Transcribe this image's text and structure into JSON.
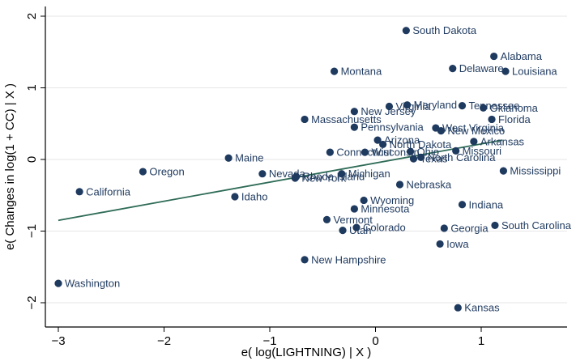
{
  "chart_data": {
    "type": "scatter",
    "xlabel": "e( log(LIGHTNING) | X )",
    "ylabel": "e( Changes in log(1 + CC) | X )",
    "xlim": [
      -3.05,
      1.3
    ],
    "ylim": [
      -2.1,
      2.1
    ],
    "x_ticks": [
      -3,
      -2,
      -1,
      0,
      1
    ],
    "y_ticks": [
      -2,
      -1,
      0,
      1,
      2
    ],
    "grid": true,
    "colors": {
      "points": "#1f3a5f",
      "fit_line": "#2e6b57"
    },
    "fit_line": {
      "x": [
        -3.0,
        1.2
      ],
      "y": [
        -0.85,
        0.27
      ]
    },
    "points": [
      {
        "label": "South Dakota",
        "x": 0.29,
        "y": 1.8
      },
      {
        "label": "Alabama",
        "x": 1.12,
        "y": 1.44
      },
      {
        "label": "Delaware",
        "x": 0.73,
        "y": 1.27
      },
      {
        "label": "Louisiana",
        "x": 1.23,
        "y": 1.23
      },
      {
        "label": "Montana",
        "x": -0.39,
        "y": 1.23
      },
      {
        "label": "Maryland",
        "x": 0.3,
        "y": 0.76
      },
      {
        "label": "Virginia",
        "x": 0.13,
        "y": 0.74
      },
      {
        "label": "New Jersey",
        "x": -0.2,
        "y": 0.67
      },
      {
        "label": "Tennessee",
        "x": 0.82,
        "y": 0.75
      },
      {
        "label": "Oklahoma",
        "x": 1.02,
        "y": 0.72
      },
      {
        "label": "Florida",
        "x": 1.1,
        "y": 0.56
      },
      {
        "label": "Massachusetts",
        "x": -0.67,
        "y": 0.56
      },
      {
        "label": "Pennsylvania",
        "x": -0.2,
        "y": 0.45
      },
      {
        "label": "West Virginia",
        "x": 0.57,
        "y": 0.44
      },
      {
        "label": "New Mexico",
        "x": 0.62,
        "y": 0.4
      },
      {
        "label": "Arizona",
        "x": 0.02,
        "y": 0.27
      },
      {
        "label": "North Dakota",
        "x": 0.07,
        "y": 0.21
      },
      {
        "label": "Arkansas",
        "x": 0.93,
        "y": 0.25
      },
      {
        "label": "Connecticut",
        "x": -0.43,
        "y": 0.1
      },
      {
        "label": "Wisconsin",
        "x": -0.1,
        "y": 0.1
      },
      {
        "label": "Ohio",
        "x": 0.33,
        "y": 0.11
      },
      {
        "label": "Missouri",
        "x": 0.76,
        "y": 0.12
      },
      {
        "label": "Texas",
        "x": 0.36,
        "y": 0.01
      },
      {
        "label": "North Carolina",
        "x": 0.43,
        "y": 0.03
      },
      {
        "label": "Maine",
        "x": -1.39,
        "y": 0.02
      },
      {
        "label": "Oregon",
        "x": -2.2,
        "y": -0.17
      },
      {
        "label": "Nevada",
        "x": -1.07,
        "y": -0.2
      },
      {
        "label": "Rhode Island",
        "x": -0.75,
        "y": -0.24
      },
      {
        "label": "New York",
        "x": -0.76,
        "y": -0.26
      },
      {
        "label": "Michigan",
        "x": -0.32,
        "y": -0.2
      },
      {
        "label": "Mississippi",
        "x": 1.21,
        "y": -0.16
      },
      {
        "label": "Nebraska",
        "x": 0.23,
        "y": -0.35
      },
      {
        "label": "California",
        "x": -2.8,
        "y": -0.45
      },
      {
        "label": "Idaho",
        "x": -1.33,
        "y": -0.52
      },
      {
        "label": "Wyoming",
        "x": -0.11,
        "y": -0.57
      },
      {
        "label": "Minnesota",
        "x": -0.2,
        "y": -0.69
      },
      {
        "label": "Indiana",
        "x": 0.82,
        "y": -0.63
      },
      {
        "label": "Vermont",
        "x": -0.46,
        "y": -0.84
      },
      {
        "label": "Colorado",
        "x": -0.18,
        "y": -0.95
      },
      {
        "label": "Utah",
        "x": -0.31,
        "y": -0.99
      },
      {
        "label": "Georgia",
        "x": 0.65,
        "y": -0.96
      },
      {
        "label": "South Carolina",
        "x": 1.13,
        "y": -0.92
      },
      {
        "label": "Iowa",
        "x": 0.61,
        "y": -1.18
      },
      {
        "label": "New Hampshire",
        "x": -0.67,
        "y": -1.4
      },
      {
        "label": "Washington",
        "x": -3.0,
        "y": -1.73
      },
      {
        "label": "Kansas",
        "x": 0.78,
        "y": -2.07
      }
    ]
  }
}
